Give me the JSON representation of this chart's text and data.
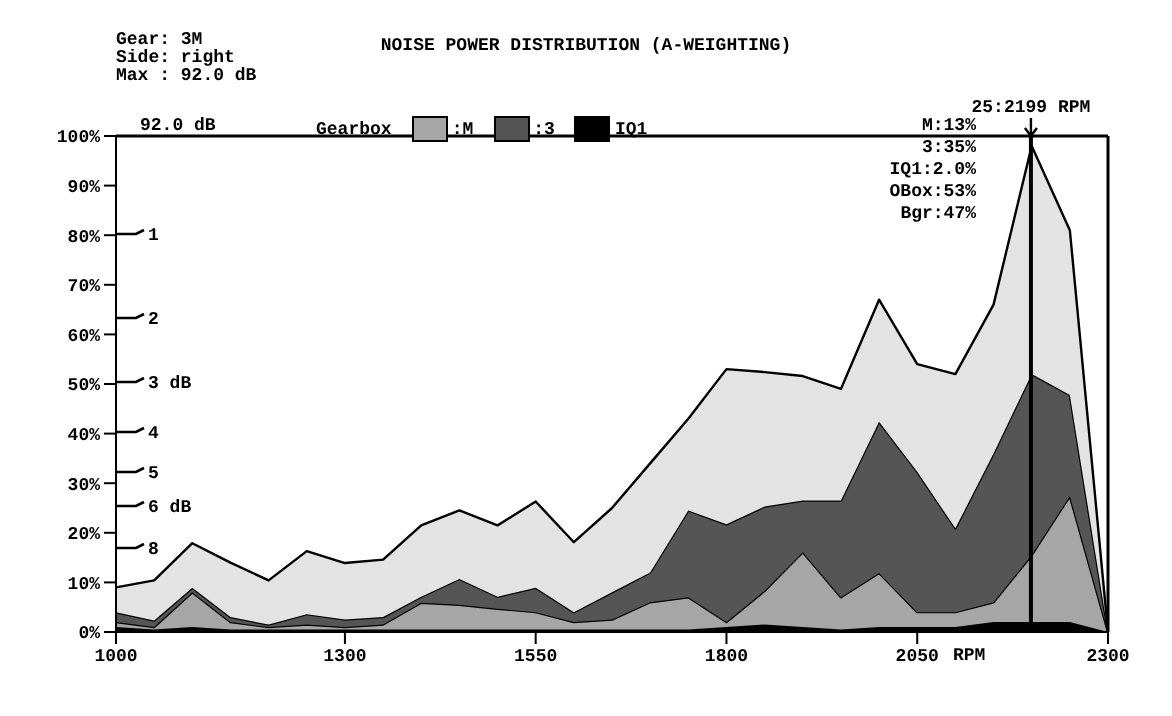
{
  "chart_data": {
    "type": "area",
    "title": "NOISE POWER DISTRIBUTION (A-WEIGHTING)",
    "xlabel": "RPM",
    "legend_title": "Gearbox",
    "stacked": true,
    "legend": "top",
    "grid": false,
    "x": [
      1000,
      1050,
      1100,
      1150,
      1200,
      1250,
      1300,
      1350,
      1400,
      1450,
      1500,
      1550,
      1600,
      1650,
      1700,
      1750,
      1800,
      1850,
      1900,
      1950,
      2000,
      2050,
      2100,
      2150,
      2200,
      2250,
      2300
    ],
    "series": [
      {
        "name": "IQ1",
        "color": "#000000",
        "values": [
          1,
          0.5,
          1,
          0.5,
          0.5,
          0.5,
          0.5,
          0.5,
          0.5,
          0.5,
          0.5,
          0.5,
          0.5,
          0.5,
          0.5,
          0.5,
          1,
          1.5,
          1,
          0.5,
          1,
          1,
          1,
          2,
          2,
          2,
          0
        ]
      },
      {
        "name": ":M",
        "color": "#a6a6a6",
        "values": [
          1,
          0.5,
          7,
          1.5,
          0.5,
          1,
          0.5,
          1,
          5.4,
          5,
          4.2,
          3.5,
          1.5,
          2,
          5.5,
          6.5,
          1,
          6.8,
          15.1,
          6.5,
          10.9,
          3,
          3,
          4,
          13.5,
          25.4,
          0
        ]
      },
      {
        "name": ":3",
        "color": "#555555",
        "values": [
          2,
          1.3,
          0.9,
          1,
          0.5,
          2.1,
          1.5,
          1.5,
          1.2,
          5.2,
          2.4,
          4.9,
          2,
          5.5,
          6,
          17.5,
          19.7,
          17,
          10.4,
          19.5,
          30.5,
          28.3,
          16.9,
          30,
          36.5,
          20.4,
          0
        ]
      },
      {
        "color": "#e3e3e3",
        "values": [
          5,
          8.1,
          9,
          11,
          8.9,
          12.7,
          11.4,
          11.6,
          14.4,
          13.8,
          14.4,
          17.4,
          14.1,
          17,
          22,
          18.5,
          31.3,
          27.1,
          25.1,
          22.5,
          24.6,
          21.7,
          31.1,
          30,
          46,
          33.2,
          0
        ]
      }
    ],
    "xlim": [
      1000,
      2300
    ],
    "xticks": [
      1000,
      1300,
      1550,
      1800,
      2050,
      2300
    ],
    "ylim": [
      0,
      100
    ],
    "yticks": [
      {
        "value": 0,
        "label": "0%"
      },
      {
        "value": 10,
        "label": "10%"
      },
      {
        "value": 20,
        "label": "20%"
      },
      {
        "value": 30,
        "label": "30%"
      },
      {
        "value": 40,
        "label": "40%"
      },
      {
        "value": 50,
        "label": "50%"
      },
      {
        "value": 60,
        "label": "60%"
      },
      {
        "value": 70,
        "label": "70%"
      },
      {
        "value": 80,
        "label": "80%"
      },
      {
        "value": 90,
        "label": "90%"
      },
      {
        "value": 100,
        "label": "100%"
      }
    ],
    "ref_lines": [
      {
        "axis": "x",
        "value": 2199,
        "label": "25:2199 RPM"
      }
    ],
    "annotations": [
      "Gear: 3M",
      "Side: right",
      "Max : 92.0 dB",
      "92.0 dB",
      "M:13%",
      "3:35%",
      "IQ1:2.0%",
      "OBox:53%",
      "Bgr:47%",
      "1",
      "2",
      "3 dB",
      "4",
      "5",
      "6 dB",
      "8"
    ]
  }
}
